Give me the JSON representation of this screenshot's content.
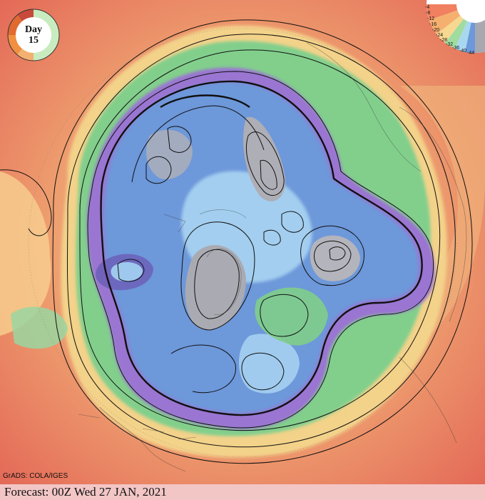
{
  "badge": {
    "label": "Day",
    "day": "15"
  },
  "legend": {
    "scale_labels": [
      "-4",
      "-8",
      "-12",
      "-16",
      "-20",
      "-24",
      "-28",
      "-32",
      "-36",
      "-40",
      "-44"
    ]
  },
  "credit": "GrADS: COLA/IGES",
  "footer": {
    "forecast": "Forecast: 00Z Wed 27 JAN, 2021"
  },
  "colors": {
    "warm_outer": "#e8705a",
    "warm_mid": "#f0a070",
    "yellow": "#f5d08a",
    "green": "#7fd08a",
    "cyan": "#a8d8f0",
    "blue": "#6a96d8",
    "purple": "#9a70d0",
    "gray": "#a8a8b0",
    "footer_bg": "#f3c6c6"
  }
}
